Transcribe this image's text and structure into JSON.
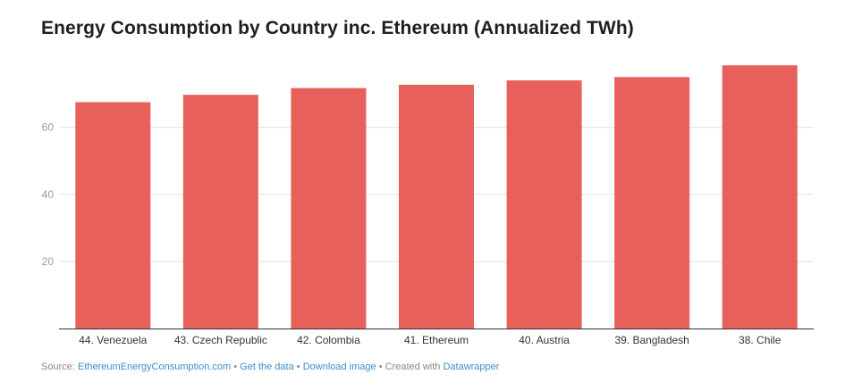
{
  "chart_data": {
    "type": "bar",
    "title": "Energy Consumption by Country inc. Ethereum (Annualized TWh)",
    "categories": [
      "44. Venezuela",
      "43. Czech Republic",
      "42. Colombia",
      "41. Ethereum",
      "40. Austria",
      "39. Bangladesh",
      "38. Chile"
    ],
    "values": [
      67.5,
      69.7,
      71.7,
      72.7,
      74.0,
      75.0,
      78.5
    ],
    "yticks": [
      20,
      40,
      60
    ],
    "ylim": [
      0,
      82
    ],
    "grid": true,
    "bar_color": "#e8605c"
  },
  "footer": {
    "source_label": "Source:",
    "source_link": "EthereumEnergyConsumption.com",
    "sep1": "•",
    "get_data": "Get the data",
    "sep2": "•",
    "download": "Download image",
    "sep3": "•",
    "created_with": "Created with",
    "tool": "Datawrapper"
  }
}
